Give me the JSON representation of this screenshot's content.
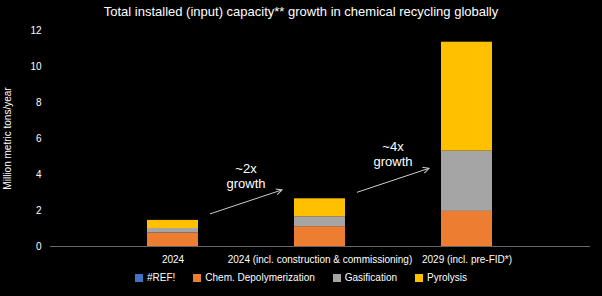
{
  "chart_data": {
    "type": "bar",
    "title": "Total installed (input) capacity** growth in chemical recycling globally",
    "y_label": "Million metric tons/year",
    "categories": [
      "2024",
      "2024 (incl. construction & commissioning)",
      "2029 (incl. pre-FID*)"
    ],
    "series": [
      {
        "name": "#REF!",
        "color": "#4472c4",
        "values": [
          0,
          0,
          0
        ]
      },
      {
        "name": "Chem. Depolymerization",
        "color": "#ed7d31",
        "values": [
          0.75,
          1.1,
          1.95
        ]
      },
      {
        "name": "Gasification",
        "color": "#a5a5a5",
        "values": [
          0.25,
          0.55,
          3.35
        ]
      },
      {
        "name": "Pyrolysis",
        "color": "#ffc000",
        "values": [
          0.45,
          1.0,
          6.05
        ]
      }
    ],
    "stacked": true,
    "ylim": [
      0,
      12
    ],
    "yticks": [
      0,
      2,
      4,
      6,
      8,
      10,
      12
    ],
    "grid": false,
    "legend": "bottom",
    "annotations": [
      "~2x\ngrowth",
      "~4x\ngrowth"
    ]
  }
}
